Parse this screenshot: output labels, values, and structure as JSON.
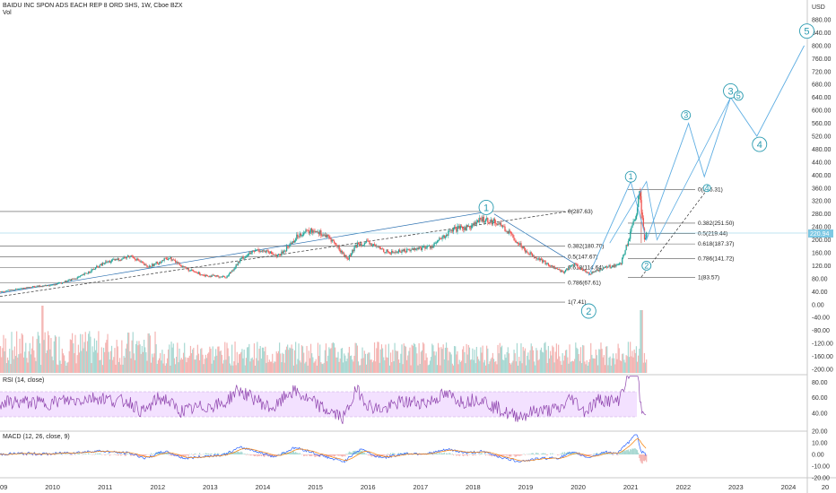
{
  "header": {
    "symbol": "BAIDU INC SPON ADS EACH REP 8 ORD SHS, 1W, Cboe BZX",
    "vol_label": "Vol",
    "currency": "USD"
  },
  "price_ticks": [
    "880.00",
    "840.00",
    "800.00",
    "760.00",
    "720.00",
    "680.00",
    "640.00",
    "600.00",
    "560.00",
    "520.00",
    "480.00",
    "440.00",
    "400.00",
    "360.00",
    "320.00",
    "280.00",
    "240.00",
    "200.00",
    "160.00",
    "120.00",
    "80.00",
    "40.00",
    "0.00",
    "-40.00",
    "-80.00",
    "-120.00",
    "-160.00",
    "-200.00"
  ],
  "last_price": "220.94",
  "rsi": {
    "label": "RSI (14, close)",
    "ticks": [
      "80.00",
      "60.00",
      "40.00"
    ]
  },
  "macd": {
    "label": "MACD (12, 26, close, 9)",
    "ticks": [
      "20.00",
      "10.00",
      "0.00",
      "-10.00",
      "-20.00"
    ]
  },
  "x_ticks": [
    "09",
    "2010",
    "2011",
    "2012",
    "2013",
    "2014",
    "2015",
    "2016",
    "2017",
    "2018",
    "2019",
    "2020",
    "2021",
    "2022",
    "2023",
    "2024",
    "20"
  ],
  "fib_left": [
    {
      "label": "0(287.63)"
    },
    {
      "label": "0.382(180.70)"
    },
    {
      "label": "0.5(147.67)"
    },
    {
      "label": "0.618(114.64)"
    },
    {
      "label": "0.786(67.61)"
    },
    {
      "label": "1(7.41)"
    }
  ],
  "fib_right": [
    {
      "label": "0(355.31)"
    },
    {
      "label": "0.382(251.50)"
    },
    {
      "label": "0.5(219.44)"
    },
    {
      "label": "0.618(187.37)"
    },
    {
      "label": "0.786(141.72)"
    },
    {
      "label": "1(83.57)"
    }
  ],
  "wave_labels": {
    "w1_a": "1",
    "w2_a": "2",
    "w1_b": "1",
    "w2_b": "2",
    "w3_a": "3",
    "w3_b": "3",
    "w3_c": "3",
    "w4_a": "4",
    "w4_b": "4",
    "w5": "5",
    "w5_small": "5"
  },
  "colors": {
    "wave": "#2a9bb0",
    "rsi": "#8e44ad",
    "macd": "#2962ff",
    "signal": "#f57c00",
    "up": "#26a69a",
    "down": "#ef5350",
    "price_line": "#7ec8e3"
  },
  "chart_data": {
    "type": "line",
    "title": "BAIDU INC SPON ADS EACH REP 8 ORD SHS, 1W, Cboe BZX",
    "x_unit": "year",
    "price_series": [
      [
        2009.0,
        40
      ],
      [
        2009.6,
        55
      ],
      [
        2010.0,
        60
      ],
      [
        2010.5,
        85
      ],
      [
        2011.0,
        130
      ],
      [
        2011.5,
        150
      ],
      [
        2011.8,
        115
      ],
      [
        2012.2,
        145
      ],
      [
        2012.6,
        105
      ],
      [
        2012.9,
        90
      ],
      [
        2013.3,
        85
      ],
      [
        2013.6,
        145
      ],
      [
        2013.9,
        170
      ],
      [
        2014.3,
        150
      ],
      [
        2014.7,
        220
      ],
      [
        2015.0,
        230
      ],
      [
        2015.3,
        200
      ],
      [
        2015.6,
        140
      ],
      [
        2015.8,
        190
      ],
      [
        2016.0,
        190
      ],
      [
        2016.4,
        160
      ],
      [
        2016.8,
        170
      ],
      [
        2017.2,
        180
      ],
      [
        2017.6,
        230
      ],
      [
        2017.9,
        240
      ],
      [
        2018.2,
        265
      ],
      [
        2018.5,
        250
      ],
      [
        2018.8,
        200
      ],
      [
        2019.0,
        165
      ],
      [
        2019.4,
        125
      ],
      [
        2019.7,
        100
      ],
      [
        2019.9,
        125
      ],
      [
        2020.2,
        95
      ],
      [
        2020.5,
        115
      ],
      [
        2020.8,
        125
      ],
      [
        2021.1,
        280
      ],
      [
        2021.15,
        350
      ],
      [
        2021.25,
        200
      ],
      [
        2021.3,
        220.94
      ]
    ],
    "projection_path": [
      [
        2020.2,
        90
      ],
      [
        2021.0,
        380
      ],
      [
        2021.3,
        200
      ],
      [
        2022.1,
        560
      ],
      [
        2022.4,
        395
      ],
      [
        2022.9,
        640
      ],
      [
        2023.4,
        520
      ],
      [
        2024.3,
        800
      ]
    ],
    "ylim": [
      -200,
      880
    ],
    "rsi_ylim": [
      20,
      90
    ],
    "macd_ylim": [
      -25,
      25
    ]
  }
}
